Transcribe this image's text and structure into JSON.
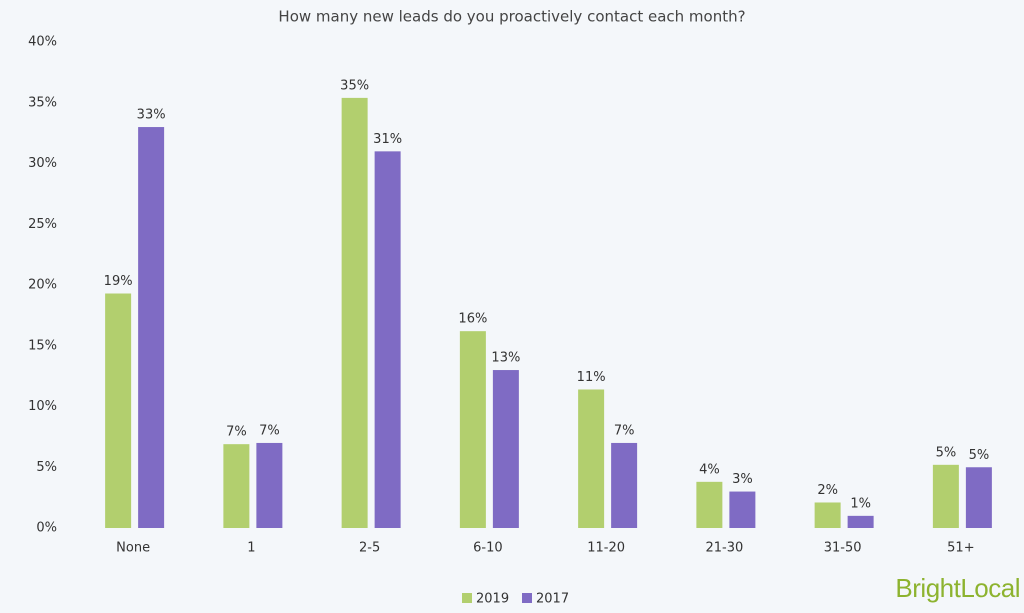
{
  "chart_data": {
    "type": "bar",
    "title": "How many new leads do you proactively contact each month?",
    "categories": [
      "None",
      "1",
      "2-5",
      "6-10",
      "11-20",
      "21-30",
      "31-50",
      "51+"
    ],
    "series": [
      {
        "name": "2019",
        "color": "#b2cf6e",
        "values": [
          19.3,
          6.9,
          35.4,
          16.2,
          11.4,
          3.8,
          2.1,
          5.2
        ],
        "value_labels": [
          "19%",
          "7%",
          "35%",
          "16%",
          "11%",
          "4%",
          "2%",
          "5%"
        ]
      },
      {
        "name": "2017",
        "color": "#7f6bc4",
        "values": [
          33,
          7,
          31,
          13,
          7,
          3,
          1,
          5
        ],
        "value_labels": [
          "33%",
          "7%",
          "31%",
          "13%",
          "7%",
          "3%",
          "1%",
          "5%"
        ]
      }
    ],
    "ylim": [
      0,
      40
    ],
    "yticks": [
      {
        "value": 0,
        "label": "0%"
      },
      {
        "value": 5,
        "label": "5%"
      },
      {
        "value": 10,
        "label": "10%"
      },
      {
        "value": 15,
        "label": "15%"
      },
      {
        "value": 20,
        "label": "20%"
      },
      {
        "value": 25,
        "label": "25%"
      },
      {
        "value": 30,
        "label": "30%"
      },
      {
        "value": 35,
        "label": "35%"
      },
      {
        "value": 40,
        "label": "40%"
      }
    ],
    "grid": false,
    "legend": "bottom",
    "brand": "BrightLocal"
  }
}
